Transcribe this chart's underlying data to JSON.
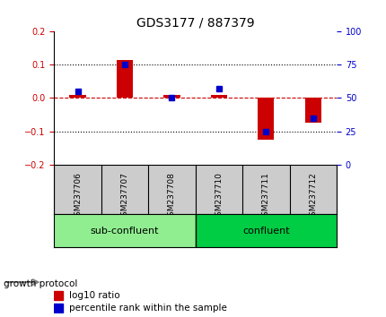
{
  "title": "GDS3177 / 887379",
  "samples": [
    "GSM237706",
    "GSM237707",
    "GSM237708",
    "GSM237710",
    "GSM237711",
    "GSM237712"
  ],
  "log10_ratio": [
    0.01,
    0.115,
    0.01,
    0.01,
    -0.125,
    -0.075
  ],
  "percentile_rank": [
    55,
    75,
    50,
    57,
    25,
    35
  ],
  "groups": [
    {
      "label": "sub-confluent",
      "indices": [
        0,
        1,
        2
      ],
      "color": "#90EE90"
    },
    {
      "label": "confluent",
      "indices": [
        3,
        4,
        5
      ],
      "color": "#00CC44"
    }
  ],
  "group_label": "growth protocol",
  "ylim_left": [
    -0.2,
    0.2
  ],
  "ylim_right": [
    0,
    100
  ],
  "yticks_left": [
    -0.2,
    -0.1,
    0.0,
    0.1,
    0.2
  ],
  "yticks_right": [
    0,
    25,
    50,
    75,
    100
  ],
  "bar_color": "#CC0000",
  "marker_color": "#0000CC",
  "zero_line_color": "#CC0000",
  "grid_color": "#000000",
  "bg_plot": "#FFFFFF",
  "bg_xtick": "#CCCCCC",
  "title_color": "#000000",
  "left_tick_color": "#CC0000",
  "right_tick_color": "#0000CC"
}
